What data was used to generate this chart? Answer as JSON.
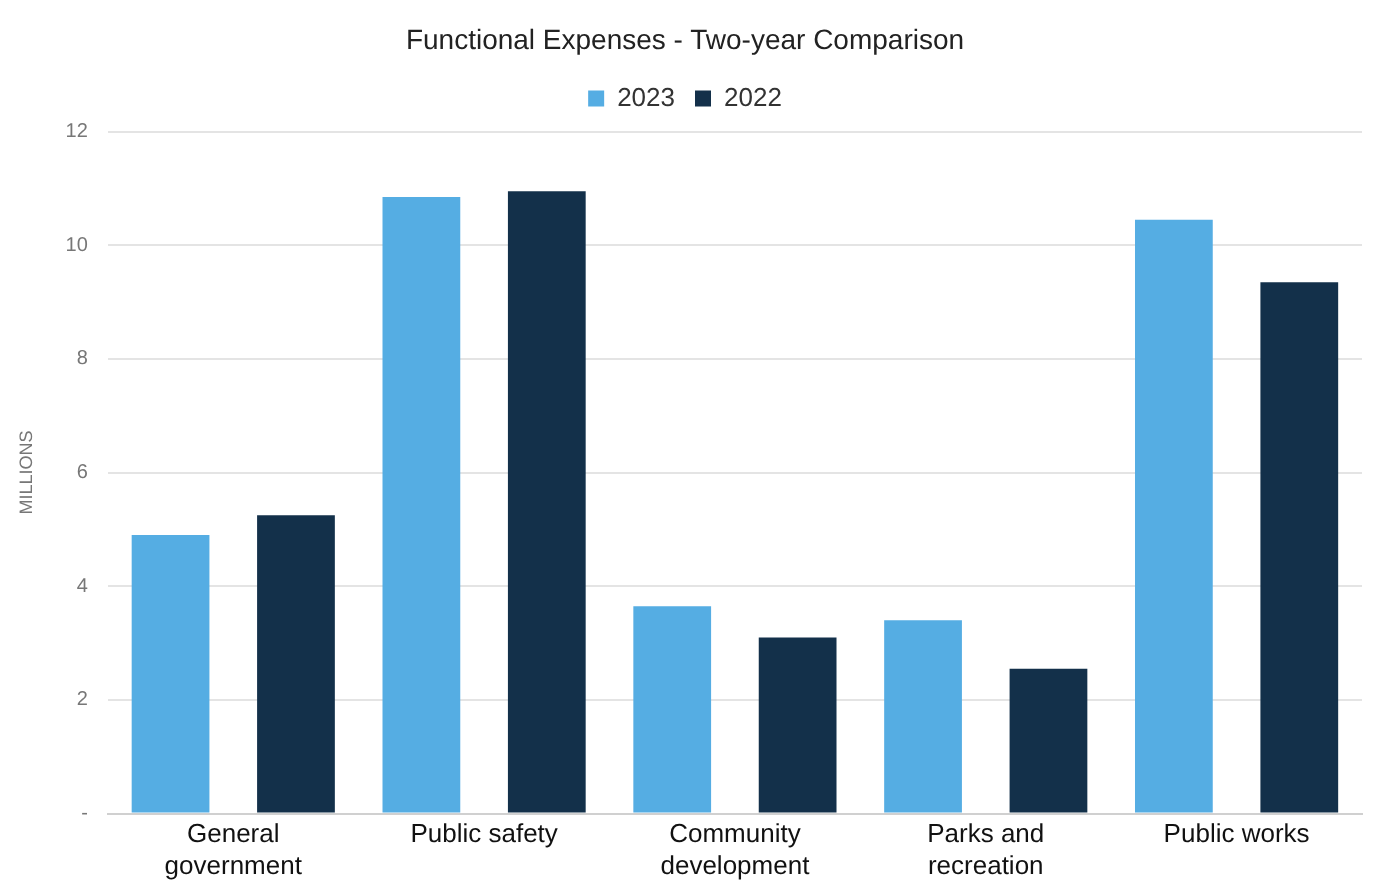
{
  "chart_data": {
    "type": "bar",
    "title": "Functional Expenses - Two-year Comparison",
    "ylabel": "MILLIONS",
    "categories": [
      "General government",
      "Public safety",
      "Community development",
      "Parks and recreation",
      "Public works"
    ],
    "series": [
      {
        "name": "2023",
        "color": "#55ade3",
        "values": [
          4.9,
          10.85,
          3.65,
          3.4,
          10.45
        ]
      },
      {
        "name": "2022",
        "color": "#13304a",
        "values": [
          5.25,
          10.95,
          3.1,
          2.55,
          9.35
        ]
      }
    ],
    "ylim": [
      0,
      12
    ],
    "yticks": [
      {
        "value": 0,
        "label": "-"
      },
      2,
      4,
      6,
      8,
      10,
      12
    ],
    "grid": "y",
    "legend": "top"
  }
}
